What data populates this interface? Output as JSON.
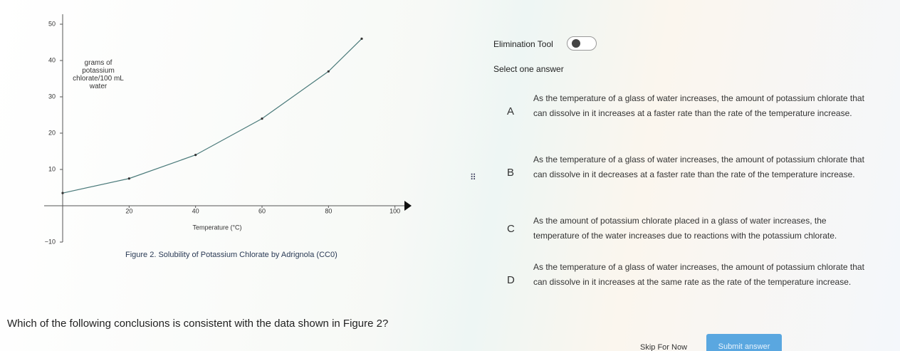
{
  "chart_data": {
    "type": "line",
    "caption": "Figure 2. Solubility of Potassium Chlorate by Adrignola (CC0)",
    "xlabel": "Temperature (°C)",
    "ylabel": "grams of potassium chlorate/100 mL water",
    "x": [
      0,
      20,
      40,
      60,
      80,
      90
    ],
    "values": [
      3.5,
      7.5,
      14,
      24,
      37,
      46
    ],
    "color": "#4a7a7a",
    "xlim": [
      0,
      105
    ],
    "ylim": [
      -10,
      50
    ],
    "xticks": [
      20,
      40,
      60,
      80,
      100
    ],
    "yticks": [
      {
        "value": -10,
        "label": "−10"
      },
      10,
      20,
      30,
      40,
      50
    ]
  },
  "tool": "Elimination Tool",
  "prompt": "Select one answer",
  "options": [
    {
      "letter": "A",
      "text": "As the temperature of a glass of water increases, the amount of potassium chlorate that can dissolve in it increases at a faster rate than the rate of the temperature increase."
    },
    {
      "letter": "B",
      "text": "As the temperature of a glass of water increases, the amount of potassium chlorate that can dissolve in it decreases at a faster rate than the rate of the temperature increase."
    },
    {
      "letter": "C",
      "text": "As the amount of potassium chlorate placed in a glass of water increases, the temperature of the water increases due to reactions with the potassium chlorate."
    },
    {
      "letter": "D",
      "text": "As the temperature of a glass of water increases, the amount of potassium chlorate that can dissolve in it increases at the same rate as the rate of the temperature increase."
    }
  ],
  "question": "Which of the following conclusions is consistent with the data shown in Figure 2?",
  "buttons": {
    "skip": "Skip For Now",
    "submit": "Submit answer"
  }
}
